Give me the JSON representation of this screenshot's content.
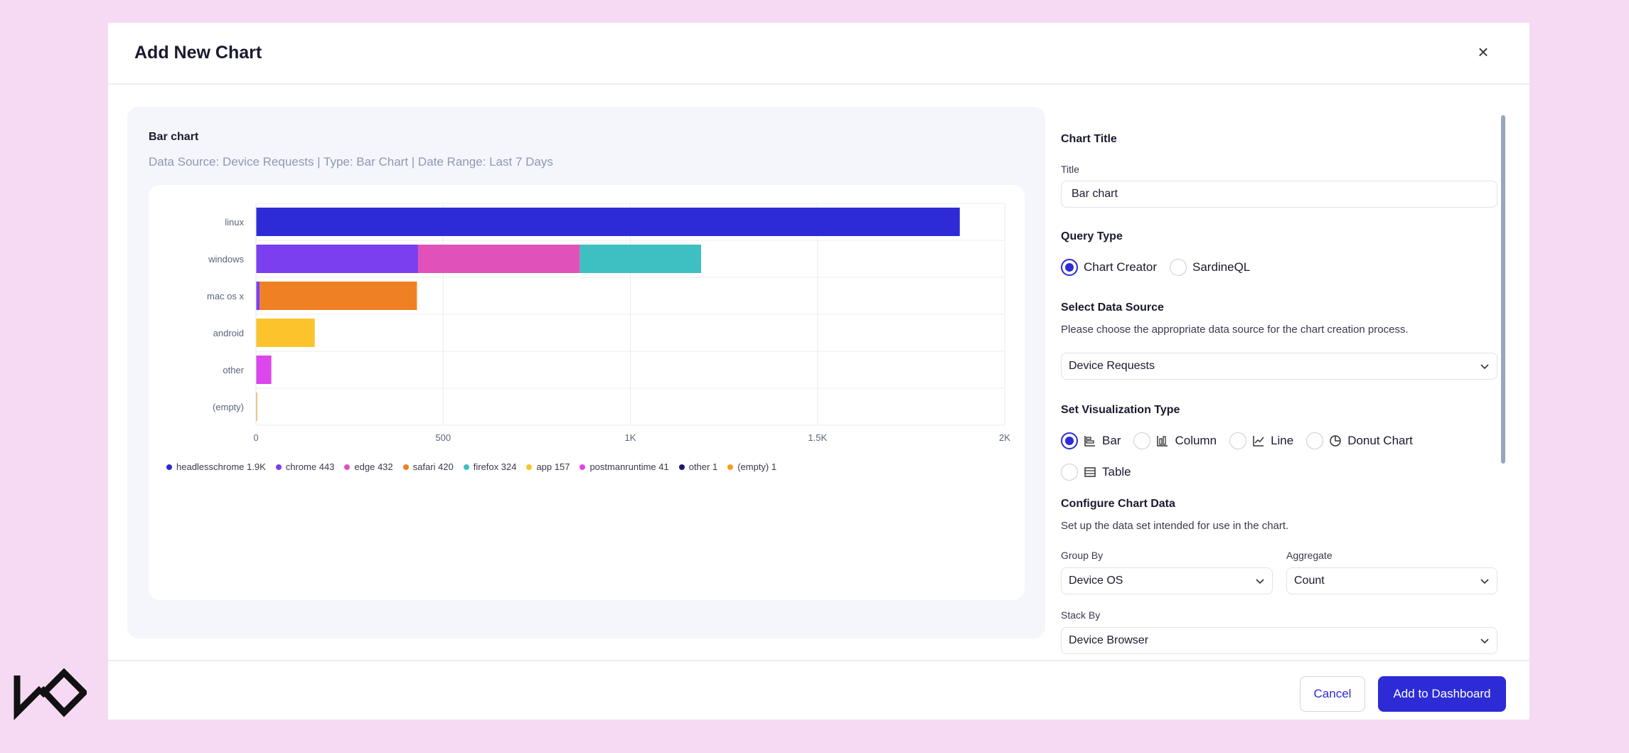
{
  "modal": {
    "title": "Add New Chart",
    "close_symbol": "×"
  },
  "preview": {
    "title": "Bar chart",
    "subtitle": "Data Source: Device Requests | Type: Bar Chart | Date Range: Last 7 Days"
  },
  "chart_data": {
    "type": "bar",
    "orientation": "horizontal",
    "stacked": true,
    "categories": [
      "linux",
      "windows",
      "mac os x",
      "android",
      "other",
      "(empty)"
    ],
    "xlim": [
      0,
      2000
    ],
    "xticks": [
      "0",
      "500",
      "1K",
      "1.5K",
      "2K"
    ],
    "xtick_values": [
      0,
      500,
      1000,
      1500,
      2000
    ],
    "grid": true,
    "legend_position": "bottom",
    "series": [
      {
        "name": "headlesschrome",
        "label": "1.9K",
        "color": "#2d2bd6",
        "values": [
          1880,
          0,
          0,
          0,
          0,
          0
        ]
      },
      {
        "name": "chrome",
        "label": "443",
        "color": "#7b3ff0",
        "values": [
          0,
          433,
          10,
          0,
          0,
          0
        ]
      },
      {
        "name": "edge",
        "label": "432",
        "color": "#e052b9",
        "values": [
          0,
          432,
          0,
          0,
          0,
          0
        ]
      },
      {
        "name": "safari",
        "label": "420",
        "color": "#f08024",
        "values": [
          0,
          0,
          420,
          0,
          0,
          0
        ]
      },
      {
        "name": "firefox",
        "label": "324",
        "color": "#3ebfc2",
        "values": [
          0,
          324,
          0,
          0,
          0,
          0
        ]
      },
      {
        "name": "app",
        "label": "157",
        "color": "#fbc42d",
        "values": [
          0,
          0,
          0,
          157,
          0,
          0
        ]
      },
      {
        "name": "postmanruntime",
        "label": "41",
        "color": "#dc46eb",
        "values": [
          0,
          0,
          0,
          0,
          41,
          0
        ]
      },
      {
        "name": "other",
        "label": "1",
        "color": "#1b1a6b",
        "values": [
          0,
          0,
          0,
          0,
          0,
          1
        ]
      },
      {
        "name": "(empty)",
        "label": "1",
        "color": "#f59e1b",
        "values": [
          0,
          0,
          0,
          0,
          0,
          1
        ]
      }
    ]
  },
  "form": {
    "chart_title_section": "Chart Title",
    "title_label": "Title",
    "title_value": "Bar chart",
    "query_type_section": "Query Type",
    "query_types": [
      {
        "label": "Chart Creator",
        "selected": true
      },
      {
        "label": "SardineQL",
        "selected": false
      }
    ],
    "data_source_section": "Select Data Source",
    "data_source_help": "Please choose the appropriate data source for the chart creation process.",
    "data_source_value": "Device Requests",
    "viz_section": "Set Visualization Type",
    "viz_types": [
      {
        "label": "Bar",
        "icon": "bar-chart-icon",
        "selected": true
      },
      {
        "label": "Column",
        "icon": "column-chart-icon",
        "selected": false
      },
      {
        "label": "Line",
        "icon": "line-chart-icon",
        "selected": false
      },
      {
        "label": "Donut Chart",
        "icon": "donut-chart-icon",
        "selected": false
      },
      {
        "label": "Table",
        "icon": "table-icon",
        "selected": false
      }
    ],
    "configure_section": "Configure Chart Data",
    "configure_help": "Set up the data set intended for use in the chart.",
    "group_by_label": "Group By",
    "group_by_value": "Device OS",
    "aggregate_label": "Aggregate",
    "aggregate_value": "Count",
    "stack_by_label": "Stack By",
    "stack_by_value": "Device Browser"
  },
  "footer": {
    "cancel_label": "Cancel",
    "add_label": "Add to Dashboard"
  },
  "colors": {
    "accent": "#2d2bd6",
    "page_background": "#f6d9f2"
  }
}
